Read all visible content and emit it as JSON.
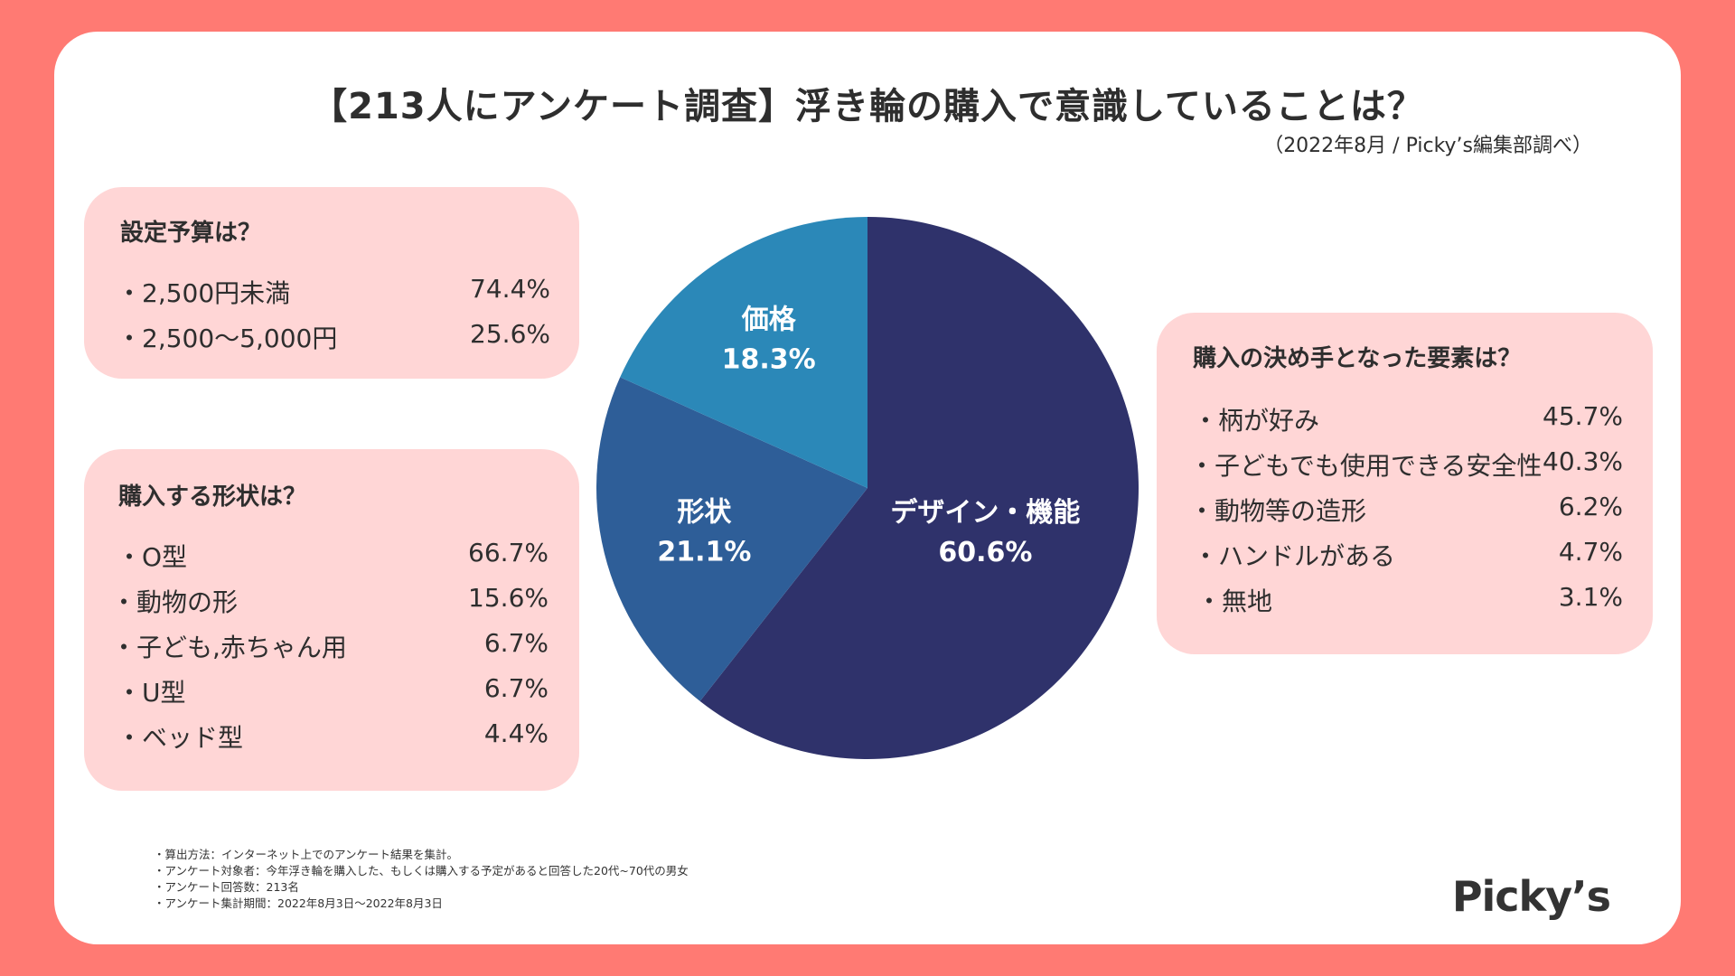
{
  "header": {
    "title": "【213人にアンケート調査】浮き輪の購入で意識していることは？",
    "subtitle": "（2022年8月 / Picky’s編集部調べ）"
  },
  "budget": {
    "heading": "設定予算は？",
    "items": [
      {
        "label": "・2,500円未満",
        "value": "74.4%"
      },
      {
        "label": "・2,500〜5,000円",
        "value": "25.6%"
      }
    ]
  },
  "shape": {
    "heading": "購入する形状は？",
    "items": [
      {
        "label": "・O型",
        "value": "66.7%"
      },
      {
        "label": "・動物の形",
        "value": "15.6%"
      },
      {
        "label": "・子ども,赤ちゃん用",
        "value": "6.7%"
      },
      {
        "label": "・U型",
        "value": "6.7%"
      },
      {
        "label": "・ベッド型",
        "value": "4.4%"
      }
    ]
  },
  "factor": {
    "heading": "購入の決め手となった要素は？",
    "items": [
      {
        "label": "・柄が好み",
        "value": "45.7%"
      },
      {
        "label": "・子どもでも使用できる安全性",
        "value": "40.3%"
      },
      {
        "label": "・動物等の造形",
        "value": "6.2%"
      },
      {
        "label": "・ハンドルがある",
        "value": "4.7%"
      },
      {
        "label": "・無地",
        "value": "3.1%"
      }
    ]
  },
  "chart_data": {
    "type": "pie",
    "title": "",
    "slices": [
      {
        "label": "デザイン・機能",
        "value": 60.6,
        "display": "60.6%",
        "color": "#2f326b"
      },
      {
        "label": "形状",
        "value": 21.1,
        "display": "21.1%",
        "color": "#2e5e98"
      },
      {
        "label": "価格",
        "value": 18.3,
        "display": "18.3%",
        "color": "#2b88b8"
      }
    ],
    "start": "12 o'clock",
    "direction": "clockwise"
  },
  "notes": [
    "・算出方法：インターネット上でのアンケート結果を集計。",
    "・アンケート対象者：今年浮き輪を購入した、もしくは購入する予定があると回答した20代~70代の男女",
    "・アンケート回答数：213名",
    "・アンケート集計期間：2022年8月3日〜2022年8月3日"
  ],
  "logo": "Picky’s",
  "colors": {
    "background": "#ff7a73",
    "box": "#ffd6d6"
  }
}
